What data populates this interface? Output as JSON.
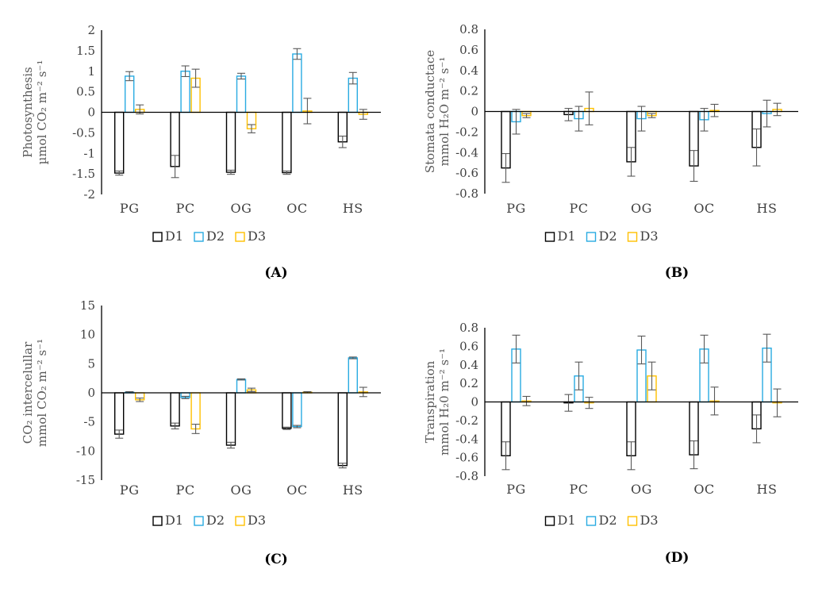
{
  "chart_data": [
    {
      "id": "A",
      "type": "bar",
      "caption": "(A)",
      "ylabel_lines": [
        "Photosynthesis",
        "µmol CO₂ m⁻² s⁻¹"
      ],
      "categories": [
        "PG",
        "PC",
        "OG",
        "OC",
        "HS"
      ],
      "ylim": [
        -2,
        2
      ],
      "ytick_step": 0.5,
      "yticks": [
        "2",
        "1.5",
        "1",
        "0.5",
        "0",
        "-0.5",
        "-1",
        "-1.5",
        "-2"
      ],
      "grid": false,
      "legend_position": "bottom",
      "error_bar_color": "#595959",
      "series": [
        {
          "name": "D1",
          "color": "#000000",
          "fill": "#FFFFFF",
          "values": [
            -1.48,
            -1.32,
            -1.46,
            -1.47,
            -0.72
          ],
          "errors": [
            0.05,
            0.27,
            0.05,
            0.04,
            0.14
          ]
        },
        {
          "name": "D2",
          "color": "#29ABE2",
          "fill": "#FFFFFF",
          "values": [
            0.88,
            1.0,
            0.88,
            1.42,
            0.83
          ],
          "errors": [
            0.11,
            0.13,
            0.07,
            0.13,
            0.14
          ]
        },
        {
          "name": "D3",
          "color": "#FFC000",
          "fill": "#FFFFFF",
          "values": [
            0.07,
            0.83,
            -0.4,
            0.03,
            -0.05
          ],
          "errors": [
            0.11,
            0.22,
            0.1,
            0.31,
            0.12
          ]
        }
      ]
    },
    {
      "id": "B",
      "type": "bar",
      "caption": "(B)",
      "ylabel_lines": [
        "Stomata conductace",
        "mmol H₂O m⁻² s⁻¹"
      ],
      "categories": [
        "PG",
        "PC",
        "OG",
        "OC",
        "HS"
      ],
      "ylim": [
        -0.8,
        0.8
      ],
      "ytick_step": 0.2,
      "yticks": [
        "0.8",
        "0.6",
        "0.4",
        "0.2",
        "0",
        "-0.2",
        "-0.4",
        "-0.6",
        "-0.8"
      ],
      "grid": false,
      "legend_position": "bottom",
      "error_bar_color": "#595959",
      "series": [
        {
          "name": "D1",
          "color": "#000000",
          "fill": "#FFFFFF",
          "values": [
            -0.55,
            -0.03,
            -0.49,
            -0.53,
            -0.35
          ],
          "errors": [
            0.14,
            0.06,
            0.14,
            0.15,
            0.18
          ]
        },
        {
          "name": "D2",
          "color": "#29ABE2",
          "fill": "#FFFFFF",
          "values": [
            -0.1,
            -0.07,
            -0.07,
            -0.08,
            -0.02
          ],
          "errors": [
            0.12,
            0.12,
            0.12,
            0.11,
            0.13
          ]
        },
        {
          "name": "D3",
          "color": "#FFC000",
          "fill": "#FFFFFF",
          "values": [
            -0.04,
            0.03,
            -0.04,
            0.01,
            0.02
          ],
          "errors": [
            0.02,
            0.16,
            0.02,
            0.06,
            0.06
          ]
        }
      ]
    },
    {
      "id": "C",
      "type": "bar",
      "caption": "(C)",
      "ylabel_lines": [
        "CO₂ intercelullar",
        "mmol CO₂ m⁻² s⁻¹"
      ],
      "categories": [
        "PG",
        "PC",
        "OG",
        "OC",
        "HS"
      ],
      "ylim": [
        -15,
        15
      ],
      "ytick_step": 5,
      "yticks": [
        "15",
        "10",
        "5",
        "0",
        "-5",
        "-10",
        "-15"
      ],
      "grid": false,
      "legend_position": "bottom",
      "error_bar_color": "#595959",
      "series": [
        {
          "name": "D1",
          "color": "#000000",
          "fill": "#FFFFFF",
          "values": [
            -7.1,
            -5.7,
            -9.0,
            -6.1,
            -12.5
          ],
          "errors": [
            0.7,
            0.5,
            0.5,
            0.2,
            0.4
          ]
        },
        {
          "name": "D2",
          "color": "#29ABE2",
          "fill": "#FFFFFF",
          "values": [
            0.1,
            -0.8,
            2.3,
            -5.8,
            6.0
          ],
          "errors": [
            0.1,
            0.2,
            0.1,
            0.2,
            0.15
          ]
        },
        {
          "name": "D3",
          "color": "#FFC000",
          "fill": "#FFFFFF",
          "values": [
            -1.2,
            -6.2,
            0.5,
            0.1,
            0.15
          ],
          "errors": [
            0.3,
            0.8,
            0.3,
            0.1,
            0.8
          ]
        }
      ]
    },
    {
      "id": "D",
      "type": "bar",
      "caption": "(D)",
      "ylabel_lines": [
        "Transpiration",
        "mmol H₂0 m⁻² s⁻¹"
      ],
      "categories": [
        "PG",
        "PC",
        "OG",
        "OC",
        "HS"
      ],
      "ylim": [
        -0.8,
        0.8
      ],
      "ytick_step": 0.2,
      "yticks": [
        "0.8",
        "0.6",
        "0.4",
        "0.2",
        "0",
        "-0.2",
        "-0.4",
        "-0.6",
        "-0.8"
      ],
      "grid": false,
      "legend_position": "bottom",
      "error_bar_color": "#595959",
      "series": [
        {
          "name": "D1",
          "color": "#000000",
          "fill": "#FFFFFF",
          "values": [
            -0.58,
            -0.01,
            -0.58,
            -0.57,
            -0.29
          ],
          "errors": [
            0.15,
            0.09,
            0.15,
            0.15,
            0.15
          ]
        },
        {
          "name": "D2",
          "color": "#29ABE2",
          "fill": "#FFFFFF",
          "values": [
            0.57,
            0.28,
            0.56,
            0.57,
            0.58
          ],
          "errors": [
            0.15,
            0.15,
            0.15,
            0.15,
            0.15
          ]
        },
        {
          "name": "D3",
          "color": "#FFC000",
          "fill": "#FFFFFF",
          "values": [
            0.01,
            -0.01,
            0.28,
            0.01,
            -0.01
          ],
          "errors": [
            0.05,
            0.06,
            0.15,
            0.15,
            0.15
          ]
        }
      ]
    }
  ]
}
